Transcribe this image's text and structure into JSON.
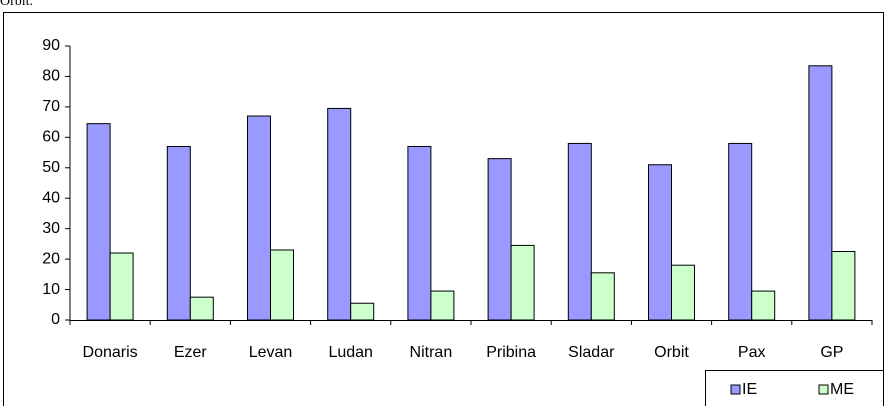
{
  "caption": "Orbit.",
  "chart_data": {
    "type": "bar",
    "categories": [
      "Donaris",
      "Ezer",
      "Levan",
      "Ludan",
      "Nitran",
      "Pribina",
      "Sladar",
      "Orbit",
      "Pax",
      "GP"
    ],
    "series": [
      {
        "name": "IE",
        "color": "#9999ff",
        "values": [
          64.5,
          57,
          67,
          69.5,
          57,
          53,
          58,
          51,
          58,
          83.5
        ]
      },
      {
        "name": "ME",
        "color": "#ccffcc",
        "values": [
          22,
          7.5,
          23,
          5.5,
          9.5,
          24.5,
          15.5,
          18,
          9.5,
          22.5
        ]
      }
    ],
    "ylim": [
      0,
      90
    ],
    "yticks": [
      0,
      10,
      20,
      30,
      40,
      50,
      60,
      70,
      80,
      90
    ],
    "legend": "bottom-right"
  }
}
